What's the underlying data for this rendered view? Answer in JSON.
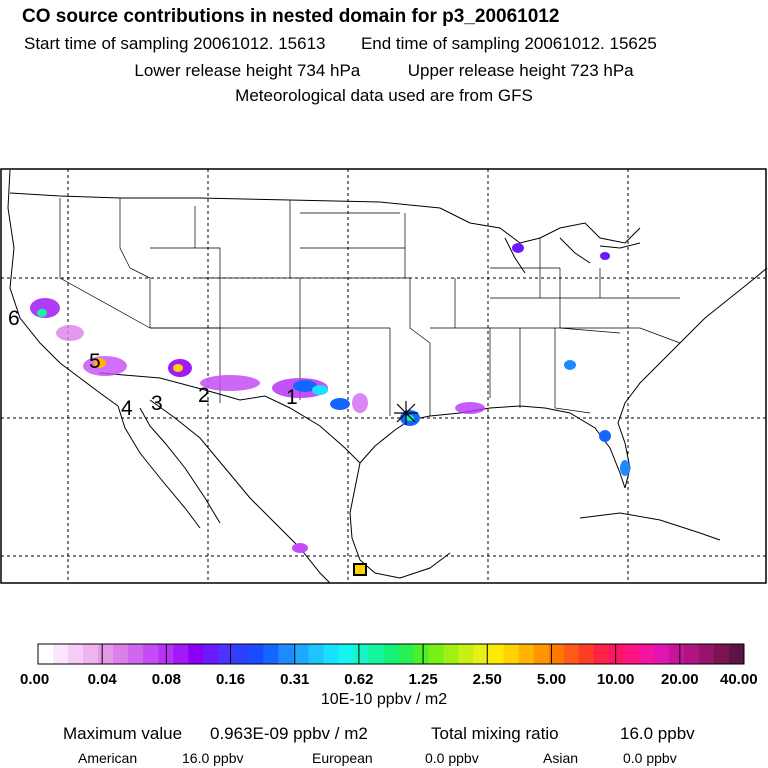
{
  "header": {
    "title": "CO  source contributions in nested domain for p3_20061012",
    "start_label": "Start time of sampling 20061012. 15613",
    "end_label": "End time of sampling 20061012. 15625",
    "lower_label": "Lower release height  734 hPa",
    "upper_label": "Upper release height  723 hPa",
    "met_label": "Meteorological data used are from GFS"
  },
  "map": {
    "region": "United States, northern Mexico and Gulf of Mexico",
    "source_labels": [
      "6",
      "5",
      "4",
      "3",
      "2",
      "1"
    ],
    "receptor_marker": "star-icon"
  },
  "scale": {
    "tick_labels": [
      "0.00",
      "0.04",
      "0.08",
      "0.16",
      "0.31",
      "0.62",
      "1.25",
      "2.50",
      "5.00",
      "10.00",
      "20.00",
      "40.00"
    ],
    "unit": "10E-10 ppbv / m2",
    "colors": [
      "#ffffff",
      "#fbe6fb",
      "#f5ccf5",
      "#efb3ef",
      "#e699e6",
      "#dc7fe8",
      "#d066f0",
      "#c34cf5",
      "#b833f7",
      "#a31af7",
      "#8b00f5",
      "#6b1aff",
      "#4d33ff",
      "#2f3fff",
      "#1a4cff",
      "#1466ff",
      "#1f8aff",
      "#1fa8ff",
      "#1fc4ff",
      "#1ae0ff",
      "#14f5f0",
      "#14f5c8",
      "#14f5a0",
      "#14f078",
      "#28f050",
      "#4cf028",
      "#78f014",
      "#a0f014",
      "#c8f014",
      "#e6f014",
      "#ffeb00",
      "#ffd200",
      "#ffb400",
      "#ff9600",
      "#ff7800",
      "#ff5a1a",
      "#ff3c28",
      "#ff2246",
      "#ff1464",
      "#ff1482",
      "#f514a0",
      "#e114b4",
      "#c8149b",
      "#af1482",
      "#961469",
      "#7d1450",
      "#5a1446"
    ]
  },
  "summary": {
    "max_label": "Maximum value",
    "max_value": "0.963E-09 ppbv / m2",
    "total_label": "Total mixing ratio",
    "total_value": "16.0 ppbv",
    "american_label": "American",
    "american_value": "16.0 ppbv",
    "european_label": "European",
    "european_value": "0.0 ppbv",
    "asian_label": "Asian",
    "asian_value": "0.0 ppbv"
  }
}
